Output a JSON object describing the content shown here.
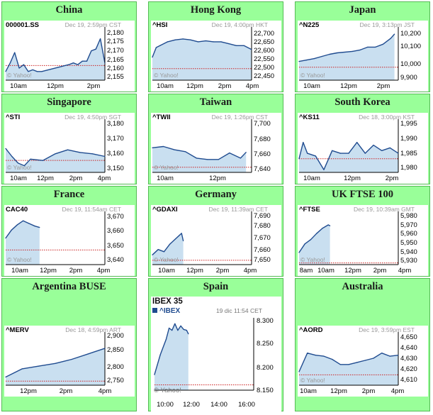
{
  "colors": {
    "cell_bg": "#99ff99",
    "cell_border": "#55bb55",
    "line": "#1f4b8f",
    "area": "#c9dff0",
    "prev_close": "#cc2222",
    "axis": "#000000"
  },
  "cells": [
    {
      "title": "China",
      "symbol": "000001.SS",
      "info": "Dec 19, 2:59pm CST",
      "watermark": "© Yahoo!",
      "yticks": [
        "2,180",
        "2,175",
        "2,170",
        "2,165",
        "2,160",
        "2,155"
      ],
      "xticks": [
        "10am",
        "12pm",
        "2pm"
      ]
    },
    {
      "title": "Hong Kong",
      "symbol": "^HSI",
      "info": "Dec 19, 4:00pm HKT",
      "watermark": "© Yahoo!",
      "yticks": [
        "22,700",
        "22,650",
        "22,600",
        "22,550",
        "22,500",
        "22,450"
      ],
      "xticks": [
        "10am",
        "12pm",
        "2pm",
        "4pm"
      ]
    },
    {
      "title": "Japan",
      "symbol": "^N225",
      "info": "Dec 19, 3:13pm JST",
      "watermark": "© Yahoo!",
      "yticks": [
        "10,200",
        "10,100",
        "10,000",
        "9,900"
      ],
      "xticks": [
        "10am",
        "12pm",
        "2pm"
      ]
    },
    {
      "title": "Singapore",
      "symbol": "^STI",
      "info": "Dec 19, 4:50pm SGT",
      "watermark": "© Yahoo!",
      "yticks": [
        "3,180",
        "3,170",
        "3,160",
        "3,150"
      ],
      "xticks": [
        "10am",
        "12pm",
        "2pm",
        "4pm"
      ]
    },
    {
      "title": "Taiwan",
      "symbol": "^TWII",
      "info": "Dec 19, 1:26pm CST",
      "watermark": "© Yahoo!",
      "yticks": [
        "7,700",
        "7,680",
        "7,660",
        "7,640"
      ],
      "xticks": [
        "10am",
        "12pm"
      ]
    },
    {
      "title": "South Korea",
      "symbol": "^KS11",
      "info": "Dec 18, 3:00pm KST",
      "watermark": "© Yahoo!",
      "yticks": [
        "1,995",
        "1,990",
        "1,985",
        "1,980"
      ],
      "xticks": [
        "10am",
        "12pm",
        "2pm"
      ]
    },
    {
      "title": "France",
      "symbol": "CAC40",
      "info": "Dec 19, 11:54am CET",
      "watermark": "© Yahoo!",
      "yticks": [
        "3,670",
        "3,660",
        "3,650",
        "3,640"
      ],
      "xticks": [
        "10am",
        "12pm",
        "2pm",
        "4pm"
      ]
    },
    {
      "title": "Germany",
      "symbol": "^GDAXI",
      "info": "Dec 19, 11:39am CET",
      "watermark": "© Yahoo!",
      "yticks": [
        "7,690",
        "7,680",
        "7,670",
        "7,660",
        "7,650"
      ],
      "xticks": [
        "10am",
        "12pm",
        "2pm",
        "4pm"
      ]
    },
    {
      "title": "UK FTSE 100",
      "symbol": "^FTSE",
      "info": "Dec 19, 10:39am GMT",
      "watermark": "© Yahoo!",
      "yticks": [
        "5,980",
        "5,970",
        "5,960",
        "5,950",
        "5,940",
        "5,930"
      ],
      "xticks": [
        "8am",
        "10am",
        "12pm",
        "2pm",
        "4pm"
      ]
    },
    {
      "title": "Argentina BUSE",
      "symbol": "^MERV",
      "info": "Dec 18, 4:59pm ART",
      "watermark": "© Yahoo!",
      "yticks": [
        "2,900",
        "2,850",
        "2,800",
        "2,750"
      ],
      "xticks": [
        "12pm",
        "2pm",
        "4pm"
      ]
    },
    {
      "title": "Spain",
      "chart_title": "IBEX 35",
      "symbol": "^IBEX",
      "info": "19 dic 11:54 CET",
      "watermark": "© Yahoo!",
      "yticks": [
        "8.300",
        "8.250",
        "8.200",
        "8.150"
      ],
      "xticks": [
        "10:00",
        "12:00",
        "14:00",
        "16:00"
      ]
    },
    {
      "title": "Australia",
      "symbol": "^AORD",
      "info": "Dec 19, 3:59pm EST",
      "watermark": "© Yahoo!",
      "yticks": [
        "4,650",
        "4,640",
        "4,630",
        "4,620",
        "4,610"
      ],
      "xticks": [
        "10am",
        "12pm",
        "2pm",
        "4pm"
      ]
    }
  ],
  "chart_data": [
    {
      "type": "line",
      "title": "China",
      "series": [
        {
          "name": "000001.SS",
          "x": [
            9.5,
            9.75,
            10,
            10.25,
            10.5,
            10.75,
            11,
            11.25,
            11.5,
            13,
            13.25,
            13.5,
            13.75,
            14,
            14.25,
            14.5,
            14.75,
            15
          ],
          "values": [
            2157,
            2162,
            2168,
            2159,
            2161,
            2157,
            2158,
            2157,
            2157,
            2161,
            2162,
            2161,
            2163,
            2163,
            2169,
            2170,
            2176,
            2162
          ]
        }
      ],
      "prev_close": 2160.5,
      "ylim": [
        2152,
        2182
      ],
      "xlim": [
        9.5,
        15
      ]
    },
    {
      "type": "line",
      "title": "Hong Kong",
      "series": [
        {
          "name": "^HSI",
          "x": [
            9.5,
            9.75,
            10,
            10.5,
            11,
            11.5,
            12,
            12.5,
            13,
            13.5,
            14,
            14.5,
            15,
            15.5,
            16
          ],
          "values": [
            22560,
            22610,
            22620,
            22640,
            22650,
            22655,
            22650,
            22640,
            22645,
            22640,
            22640,
            22630,
            22620,
            22620,
            22600
          ]
        }
      ],
      "prev_close": 22500,
      "ylim": [
        22440,
        22710
      ],
      "xlim": [
        9.5,
        16
      ]
    },
    {
      "type": "line",
      "title": "Japan",
      "series": [
        {
          "name": "^N225",
          "x": [
            9,
            9.5,
            10,
            10.5,
            11,
            11.5,
            12.5,
            13,
            13.5,
            14,
            14.5,
            15,
            15.25
          ],
          "values": [
            10000,
            10010,
            10020,
            10035,
            10050,
            10060,
            10070,
            10080,
            10100,
            10100,
            10120,
            10160,
            10190
          ]
        }
      ],
      "prev_close": 9960,
      "ylim": [
        9870,
        10230
      ],
      "xlim": [
        9,
        15.5
      ]
    },
    {
      "type": "line",
      "title": "Singapore",
      "series": [
        {
          "name": "^STI",
          "x": [
            9,
            9.5,
            10,
            10.5,
            11,
            12,
            13,
            14,
            15,
            16,
            17
          ],
          "values": [
            3164,
            3158,
            3153,
            3151,
            3156,
            3155,
            3160,
            3163,
            3161,
            3160,
            3158
          ]
        }
      ],
      "prev_close": 3155,
      "ylim": [
        3146,
        3185
      ],
      "xlim": [
        9,
        17
      ]
    },
    {
      "type": "line",
      "title": "Taiwan",
      "series": [
        {
          "name": "^TWII",
          "x": [
            9,
            9.5,
            10,
            10.5,
            11,
            11.5,
            12,
            12.5,
            13,
            13.25
          ],
          "values": [
            7668,
            7670,
            7665,
            7662,
            7652,
            7650,
            7650,
            7660,
            7652,
            7661
          ]
        }
      ],
      "prev_close": 7638,
      "ylim": [
        7630,
        7710
      ],
      "xlim": [
        9,
        13.5
      ]
    },
    {
      "type": "line",
      "title": "South Korea",
      "series": [
        {
          "name": "^KS11",
          "x": [
            9,
            9.25,
            9.5,
            10,
            10.5,
            11,
            11.5,
            12,
            12.5,
            13,
            13.5,
            14,
            14.5,
            15
          ],
          "values": [
            1983,
            1989,
            1985,
            1984,
            1979,
            1986,
            1985,
            1985,
            1989,
            1985,
            1988,
            1986,
            1987,
            1985
          ]
        }
      ],
      "prev_close": 1983,
      "ylim": [
        1978,
        1997
      ],
      "xlim": [
        9,
        15
      ]
    },
    {
      "type": "line",
      "title": "France",
      "series": [
        {
          "name": "CAC40",
          "x": [
            9,
            9.5,
            10,
            10.5,
            11,
            11.5,
            11.9
          ],
          "values": [
            3656,
            3662,
            3666,
            3669,
            3667,
            3665,
            3664
          ]
        }
      ],
      "prev_close": 3647,
      "ylim": [
        3636,
        3675
      ],
      "xlim": [
        9,
        17.5
      ]
    },
    {
      "type": "line",
      "title": "Germany",
      "series": [
        {
          "name": "^GDAXI",
          "x": [
            9,
            9.5,
            10,
            10.5,
            11,
            11.5,
            11.65
          ],
          "values": [
            7655,
            7660,
            7658,
            7665,
            7670,
            7675,
            7668
          ]
        }
      ],
      "prev_close": 7650,
      "ylim": [
        7646,
        7694
      ],
      "xlim": [
        9,
        17.5
      ]
    },
    {
      "type": "line",
      "title": "UK FTSE 100",
      "series": [
        {
          "name": "^FTSE",
          "x": [
            8,
            8.5,
            9,
            9.5,
            10,
            10.5,
            10.65
          ],
          "values": [
            5940,
            5950,
            5955,
            5962,
            5968,
            5972,
            5971
          ]
        }
      ],
      "prev_close": 5928,
      "ylim": [
        5926,
        5986
      ],
      "xlim": [
        8,
        16.5
      ]
    },
    {
      "type": "line",
      "title": "Argentina BUSE",
      "series": [
        {
          "name": "^MERV",
          "x": [
            11,
            12,
            13,
            14,
            15,
            16,
            17
          ],
          "values": [
            2760,
            2790,
            2800,
            2810,
            2825,
            2845,
            2865
          ]
        }
      ],
      "prev_close": 2745,
      "ylim": [
        2730,
        2920
      ],
      "xlim": [
        11,
        17
      ]
    },
    {
      "type": "line",
      "title": "IBEX 35",
      "series": [
        {
          "name": "^IBEX",
          "x": [
            9,
            9.5,
            10,
            10.25,
            10.5,
            10.75,
            11,
            11.25,
            11.5,
            11.75,
            11.9
          ],
          "values": [
            8180,
            8225,
            8260,
            8285,
            8280,
            8295,
            8280,
            8290,
            8282,
            8280,
            8272
          ]
        }
      ],
      "prev_close": 8157,
      "ylim": [
        8145,
        8305
      ],
      "xlim": [
        9,
        17.5
      ]
    },
    {
      "type": "line",
      "title": "Australia",
      "series": [
        {
          "name": "^AORD",
          "x": [
            10,
            10.5,
            11,
            11.5,
            12,
            12.5,
            13,
            13.5,
            14,
            14.5,
            15,
            15.5,
            16
          ],
          "values": [
            4618,
            4636,
            4634,
            4633,
            4630,
            4625,
            4625,
            4627,
            4629,
            4631,
            4636,
            4633,
            4634
          ]
        }
      ],
      "prev_close": 4615,
      "ylim": [
        4605,
        4655
      ],
      "xlim": [
        10,
        16
      ]
    }
  ]
}
